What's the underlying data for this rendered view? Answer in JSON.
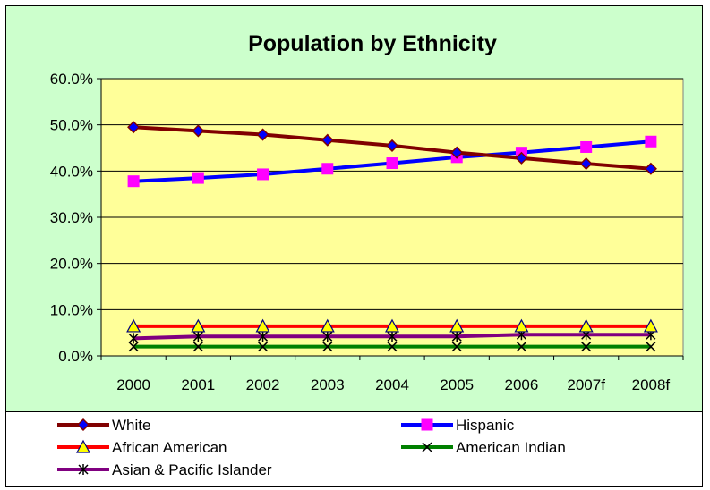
{
  "chart_data": {
    "type": "line",
    "title": "Population by Ethnicity",
    "xlabel": "",
    "ylabel": "",
    "categories": [
      "2000",
      "2001",
      "2002",
      "2003",
      "2004",
      "2005",
      "2006",
      "2007f",
      "2008f"
    ],
    "yticks": [
      "0.0%",
      "10.0%",
      "20.0%",
      "30.0%",
      "40.0%",
      "50.0%",
      "60.0%"
    ],
    "ylim": [
      0,
      60
    ],
    "grid": "horizontal",
    "legend_position": "bottom",
    "plot_background": "#ffff99",
    "chart_background": "#ccffcc",
    "series": [
      {
        "name": "White",
        "color": "#800000",
        "marker": "diamond",
        "marker_color": "#0000ff",
        "values": [
          49.5,
          48.7,
          47.9,
          46.7,
          45.5,
          44.0,
          42.8,
          41.6,
          40.5
        ]
      },
      {
        "name": "Hispanic",
        "color": "#0000ff",
        "marker": "square",
        "marker_color": "#ff00ff",
        "values": [
          37.8,
          38.5,
          39.3,
          40.5,
          41.7,
          43.0,
          44.0,
          45.2,
          46.4
        ]
      },
      {
        "name": "African American",
        "color": "#ff0000",
        "marker": "triangle",
        "marker_color": "#ffff00",
        "values": [
          6.4,
          6.4,
          6.4,
          6.4,
          6.4,
          6.4,
          6.4,
          6.4,
          6.4
        ]
      },
      {
        "name": "American Indian",
        "color": "#008000",
        "marker": "x",
        "marker_color": "#000000",
        "values": [
          2.0,
          2.0,
          2.0,
          2.0,
          2.0,
          2.0,
          2.0,
          2.0,
          2.0
        ]
      },
      {
        "name": "Asian & Pacific Islander",
        "color": "#800080",
        "marker": "asterisk",
        "marker_color": "#000000",
        "values": [
          3.8,
          4.2,
          4.2,
          4.2,
          4.2,
          4.2,
          4.6,
          4.6,
          4.6
        ]
      }
    ]
  }
}
